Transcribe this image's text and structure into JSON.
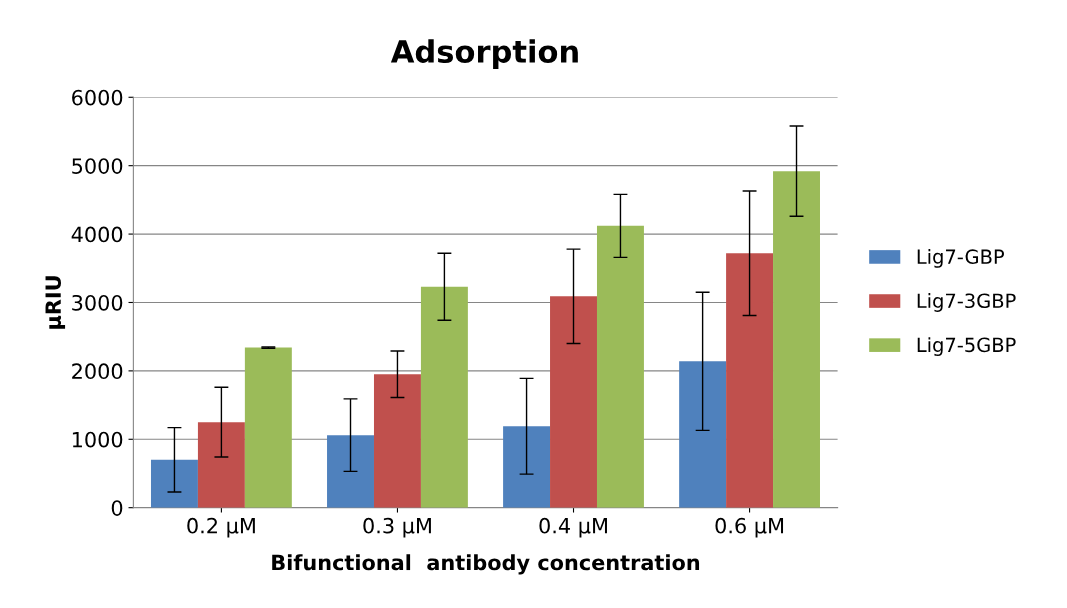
{
  "chart_data": {
    "type": "bar",
    "title": "Adsorption",
    "xlabel": "Bifunctional  antibody concentration",
    "ylabel": "µRIU",
    "categories": [
      "0.2 µM",
      "0.3 µM",
      "0.4 µM",
      "0.6 µM"
    ],
    "series": [
      {
        "name": "Lig7-GBP",
        "color": "#4f81bd",
        "values": [
          700,
          1060,
          1190,
          2140
        ],
        "errors": [
          470,
          530,
          700,
          1010
        ]
      },
      {
        "name": "Lig7-3GBP",
        "color": "#c0504d",
        "values": [
          1250,
          1950,
          3090,
          3720
        ],
        "errors": [
          510,
          340,
          690,
          910
        ]
      },
      {
        "name": "Lig7-5GBP",
        "color": "#9bbb59",
        "values": [
          2340,
          3230,
          4120,
          4920
        ],
        "errors": [
          10,
          490,
          460,
          660
        ]
      }
    ],
    "ylim": [
      0,
      6000
    ],
    "yticks": [
      0,
      1000,
      2000,
      3000,
      4000,
      5000,
      6000
    ],
    "grid": "y",
    "legend": "right"
  }
}
